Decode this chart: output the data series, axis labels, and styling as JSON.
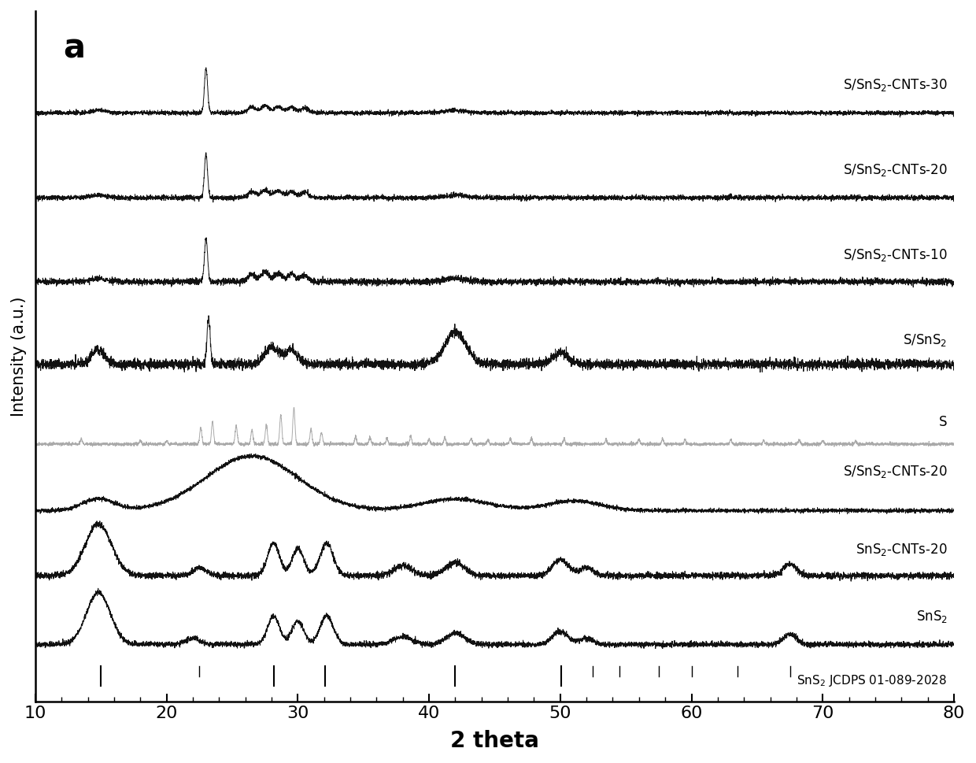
{
  "title": "a",
  "xlabel": "2 theta",
  "ylabel": "Intensity (a.u.)",
  "xlim": [
    10,
    80
  ],
  "x_ticks": [
    10,
    20,
    30,
    40,
    50,
    60,
    70,
    80
  ],
  "background_color": "#ffffff",
  "series_labels": [
    "S/SnS$_2$-CNTs-30",
    "S/SnS$_2$-CNTs-20",
    "S/SnS$_2$-CNTs-10",
    "S/SnS$_2$",
    "S",
    "S/SnS$_2$-CNTs-20",
    "SnS$_2$-CNTs-20",
    "SnS$_2$"
  ],
  "jcdps_label": "SnS$_2$ JCDPS 01-089-2028",
  "jcdps_major_peaks": [
    15.0,
    28.2,
    32.1,
    42.0,
    50.1
  ],
  "jcdps_minor_peaks": [
    22.5,
    52.5,
    54.5,
    57.5,
    60.0,
    63.5,
    67.5
  ],
  "offsets": [
    7.5,
    6.3,
    5.1,
    3.9,
    2.85,
    1.9,
    0.95,
    0.0
  ],
  "line_color_dark": "#111111",
  "line_color_light": "#aaaaaa",
  "noise_seed": 42
}
